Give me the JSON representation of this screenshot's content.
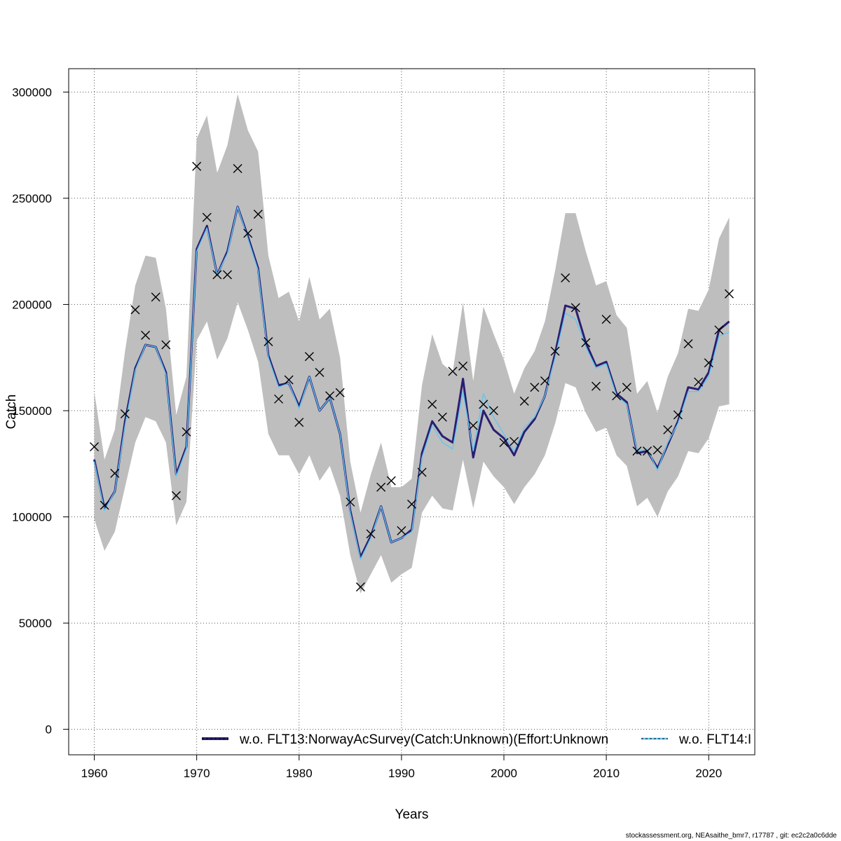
{
  "chart_data": {
    "type": "line",
    "xlabel": "Years",
    "ylabel": "Catch",
    "xlim": [
      1957.5,
      2024.5
    ],
    "ylim": [
      -12000,
      311000
    ],
    "xticks": [
      1960,
      1970,
      1980,
      1990,
      2000,
      2010,
      2020
    ],
    "yticks": [
      0,
      50000,
      100000,
      150000,
      200000,
      250000,
      300000
    ],
    "grid": true,
    "legend_position": "bottom",
    "x": [
      1960,
      1961,
      1962,
      1963,
      1964,
      1965,
      1966,
      1967,
      1968,
      1969,
      1970,
      1971,
      1972,
      1973,
      1974,
      1975,
      1976,
      1977,
      1978,
      1979,
      1980,
      1981,
      1982,
      1983,
      1984,
      1985,
      1986,
      1987,
      1988,
      1989,
      1990,
      1991,
      1992,
      1993,
      1994,
      1995,
      1996,
      1997,
      1998,
      1999,
      2000,
      2001,
      2002,
      2003,
      2004,
      2005,
      2006,
      2007,
      2008,
      2009,
      2010,
      2011,
      2012,
      2013,
      2014,
      2015,
      2016,
      2017,
      2018,
      2019,
      2020,
      2021,
      2022
    ],
    "band_upper": [
      159000,
      127000,
      141000,
      178000,
      209000,
      223000,
      222000,
      198000,
      148000,
      166000,
      278000,
      289000,
      262000,
      275000,
      299000,
      282000,
      272000,
      223000,
      203000,
      206000,
      192000,
      213000,
      193000,
      198000,
      175000,
      126000,
      102000,
      120000,
      135000,
      114000,
      114000,
      118000,
      162000,
      186000,
      172000,
      168000,
      201000,
      164000,
      199000,
      186000,
      174000,
      158000,
      170000,
      178000,
      192000,
      216000,
      243000,
      243000,
      225000,
      209000,
      211000,
      195000,
      189000,
      158000,
      164000,
      149000,
      166000,
      177000,
      198000,
      197000,
      207000,
      231000,
      241000
    ],
    "band_lower": [
      99000,
      84000,
      93000,
      114000,
      135000,
      147000,
      145000,
      135000,
      96000,
      107000,
      183000,
      192000,
      174000,
      184000,
      201000,
      188000,
      173000,
      139000,
      129000,
      129000,
      120000,
      129000,
      117000,
      124000,
      110000,
      82000,
      64000,
      73000,
      82000,
      69000,
      73000,
      76000,
      102000,
      110000,
      104000,
      103000,
      127000,
      104000,
      126000,
      119000,
      114000,
      106000,
      114000,
      120000,
      129000,
      144000,
      163000,
      161000,
      149000,
      140000,
      142000,
      129000,
      124000,
      105000,
      109000,
      100000,
      112000,
      119000,
      131000,
      130000,
      137000,
      152000,
      153000
    ],
    "observed": [
      133000,
      105500,
      120500,
      148500,
      197500,
      185500,
      203500,
      181000,
      110000,
      140000,
      265000,
      241000,
      214000,
      214000,
      264000,
      233500,
      242500,
      182500,
      155500,
      164500,
      144500,
      175500,
      168000,
      157000,
      158500,
      107000,
      67000,
      92000,
      114000,
      117000,
      93500,
      106000,
      121000,
      153000,
      147000,
      168500,
      171000,
      143000,
      153000,
      150000,
      135000,
      135500,
      154500,
      161000,
      164000,
      178000,
      212500,
      198500,
      182000,
      161500,
      193000,
      157000,
      161000,
      131000,
      131000,
      131500,
      141000,
      148000,
      181500,
      163500,
      172500,
      188000,
      205000
    ],
    "series": [
      {
        "name": "w.o. FLT13:NorwayAcSurvey(Catch:Unknown)(Effort:Unknown",
        "color": "#2a1e72",
        "values": [
          127000,
          104000,
          112000,
          145000,
          170000,
          181000,
          180000,
          168000,
          120000,
          133000,
          226000,
          237000,
          214000,
          225000,
          246000,
          232000,
          217000,
          176000,
          162000,
          163000,
          152000,
          166000,
          150000,
          156000,
          139000,
          103000,
          81000,
          91000,
          105000,
          88000,
          90000,
          94000,
          130000,
          145000,
          138000,
          135000,
          165000,
          128000,
          150000,
          141000,
          137000,
          129000,
          140000,
          146000,
          157000,
          177000,
          199500,
          198000,
          182000,
          171000,
          173000,
          158000,
          154000,
          130000,
          131000,
          123000,
          134000,
          145000,
          161000,
          160000,
          168000,
          188000,
          192000
        ]
      },
      {
        "name": "w.o. FLT14:I",
        "color": "#63c6ef",
        "values": [
          126000,
          103000,
          112000,
          143000,
          169000,
          181000,
          180000,
          167000,
          119000,
          132000,
          225000,
          236000,
          214000,
          224000,
          246000,
          231000,
          216000,
          175000,
          161000,
          163000,
          151000,
          166000,
          150000,
          156000,
          139000,
          102000,
          80000,
          90000,
          105000,
          88000,
          90000,
          93000,
          128000,
          143000,
          135000,
          132000,
          159000,
          131000,
          158000,
          147000,
          139000,
          131000,
          142000,
          147000,
          157000,
          175000,
          196000,
          193000,
          180000,
          170000,
          172000,
          157000,
          153000,
          131000,
          132000,
          122000,
          135000,
          144000,
          159000,
          159000,
          166000,
          185000,
          187000
        ]
      }
    ]
  },
  "footer": "stockassessment.org, NEAsaithe_bmr7, r17787 , git: ec2c2a0c6dde"
}
